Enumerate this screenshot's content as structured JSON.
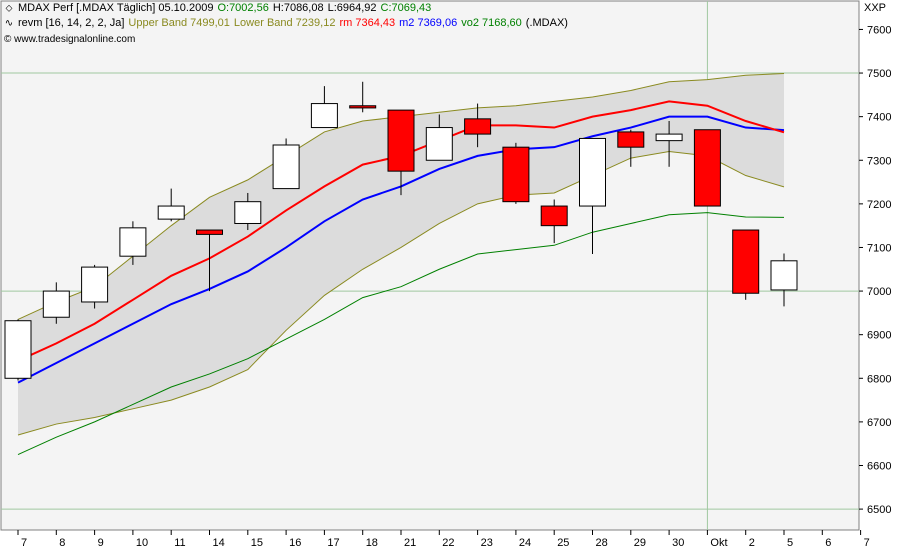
{
  "header": {
    "line1": {
      "symbol": "MDAX Perf [.MDAX  Täglich] 05.10.2009",
      "open": "O:7002,56",
      "high": "H:7086,08",
      "low": "L:6964,92",
      "close": "C:7069,43"
    },
    "line2": {
      "indicator": "revm [16, 14, 2, 2, Ja]",
      "upper": "Upper Band 7499,01",
      "lower": "Lower Band 7239,12",
      "rm": "rm 7364,43",
      "m2": "m2 7369,06",
      "vo2": "vo2 7168,60",
      "sym": "(.MDAX)"
    },
    "copyright": "© www.tradesignalonline.com",
    "corner": "XXP"
  },
  "colors": {
    "up_body": "#ffffff",
    "down_body": "#ff0000",
    "candle_outline": "#000000",
    "band_fill": "#dcdcdc",
    "band_line": "#8a8a20",
    "rm": "#ff0000",
    "m2": "#0000ff",
    "vo2": "#008000",
    "grid": "#a0c8a0",
    "plot_bg": "#f4f4f4"
  },
  "chart_data": {
    "type": "candlestick",
    "x_ticks": [
      "7",
      "8",
      "9",
      "10",
      "11",
      "14",
      "15",
      "16",
      "17",
      "18",
      "21",
      "22",
      "23",
      "24",
      "25",
      "28",
      "29",
      "30",
      "Okt",
      "2",
      "5",
      "6",
      "7"
    ],
    "y_ticks": [
      "7600",
      "7500",
      "7400",
      "7300",
      "7200",
      "7100",
      "7000",
      "6900",
      "6800",
      "6700",
      "6600",
      "6500"
    ],
    "ylim": [
      6475,
      7640
    ],
    "candles": [
      {
        "date": "7",
        "open": 6800,
        "high": 6935,
        "low": 6795,
        "close": 6932
      },
      {
        "date": "8",
        "open": 6940,
        "high": 7020,
        "low": 6925,
        "close": 7000
      },
      {
        "date": "9",
        "open": 6975,
        "high": 7060,
        "low": 6960,
        "close": 7055
      },
      {
        "date": "10",
        "open": 7080,
        "high": 7160,
        "low": 7060,
        "close": 7145
      },
      {
        "date": "11",
        "open": 7165,
        "high": 7235,
        "low": 7160,
        "close": 7195
      },
      {
        "date": "14",
        "open": 7140,
        "high": 7140,
        "low": 7000,
        "close": 7130
      },
      {
        "date": "15",
        "open": 7155,
        "high": 7225,
        "low": 7140,
        "close": 7205
      },
      {
        "date": "16",
        "open": 7235,
        "high": 7350,
        "low": 7235,
        "close": 7335
      },
      {
        "date": "17",
        "open": 7375,
        "high": 7470,
        "low": 7375,
        "close": 7430
      },
      {
        "date": "18",
        "open": 7425,
        "high": 7480,
        "low": 7410,
        "close": 7420
      },
      {
        "date": "21",
        "open": 7415,
        "high": 7415,
        "low": 7220,
        "close": 7275
      },
      {
        "date": "22",
        "open": 7300,
        "high": 7405,
        "low": 7300,
        "close": 7375
      },
      {
        "date": "23",
        "open": 7395,
        "high": 7430,
        "low": 7330,
        "close": 7360
      },
      {
        "date": "24",
        "open": 7330,
        "high": 7340,
        "low": 7200,
        "close": 7205
      },
      {
        "date": "25",
        "open": 7195,
        "high": 7210,
        "low": 7110,
        "close": 7150
      },
      {
        "date": "28",
        "open": 7195,
        "high": 7350,
        "low": 7085,
        "close": 7350
      },
      {
        "date": "29",
        "open": 7365,
        "high": 7370,
        "low": 7285,
        "close": 7330
      },
      {
        "date": "30",
        "open": 7345,
        "high": 7390,
        "low": 7285,
        "close": 7360
      },
      {
        "date": "Okt",
        "open": 7370,
        "high": 7370,
        "low": 7195,
        "close": 7195
      },
      {
        "date": "2",
        "open": 7140,
        "high": 7140,
        "low": 6980,
        "close": 6995
      },
      {
        "date": "5",
        "open": 7002.56,
        "high": 7086.08,
        "low": 6964.92,
        "close": 7069.43
      }
    ],
    "upper_band": [
      6935,
      6975,
      7010,
      7080,
      7150,
      7215,
      7255,
      7310,
      7365,
      7390,
      7400,
      7410,
      7420,
      7425,
      7435,
      7445,
      7460,
      7480,
      7485,
      7495,
      7499
    ],
    "lower_band": [
      6670,
      6695,
      6710,
      6730,
      6750,
      6780,
      6820,
      6910,
      6990,
      7050,
      7100,
      7155,
      7200,
      7220,
      7225,
      7265,
      7305,
      7320,
      7310,
      7265,
      7239
    ],
    "rm": [
      6840,
      6880,
      6925,
      6980,
      7035,
      7075,
      7125,
      7185,
      7240,
      7290,
      7310,
      7345,
      7380,
      7380,
      7375,
      7400,
      7415,
      7435,
      7425,
      7390,
      7364
    ],
    "m2": [
      6790,
      6835,
      6880,
      6925,
      6970,
      7005,
      7045,
      7100,
      7160,
      7210,
      7240,
      7280,
      7310,
      7325,
      7330,
      7355,
      7375,
      7400,
      7400,
      7375,
      7369
    ],
    "vo2": [
      6625,
      6665,
      6700,
      6740,
      6780,
      6810,
      6845,
      6890,
      6935,
      6985,
      7010,
      7050,
      7085,
      7095,
      7105,
      7135,
      7155,
      7175,
      7180,
      7170,
      7169
    ]
  }
}
